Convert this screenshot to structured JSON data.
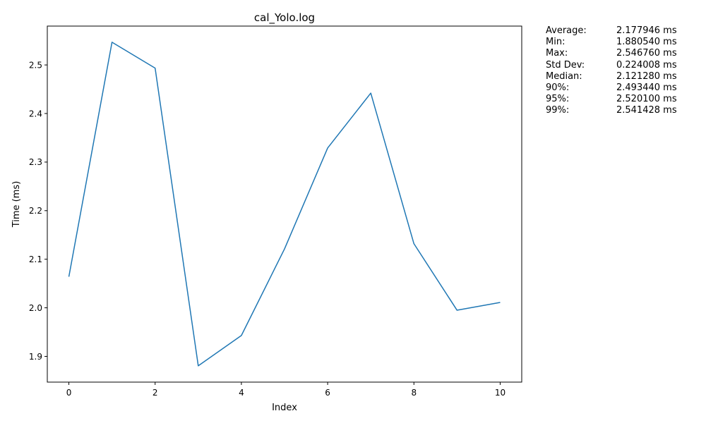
{
  "chart_data": {
    "type": "line",
    "title": "cal_Yolo.log",
    "xlabel": "Index",
    "ylabel": "Time (ms)",
    "xlim": [
      -0.5,
      10.5
    ],
    "ylim": [
      1.847,
      2.58
    ],
    "xticks": [
      0,
      2,
      4,
      6,
      8,
      10
    ],
    "yticks": [
      1.9,
      2.0,
      2.1,
      2.2,
      2.3,
      2.4,
      2.5
    ],
    "ytick_labels": [
      "1.9",
      "2.0",
      "2.1",
      "2.2",
      "2.3",
      "2.4",
      "2.5"
    ],
    "grid": false,
    "series": [
      {
        "color": "#1f77b4",
        "x": [
          0,
          1,
          2,
          3,
          4,
          5,
          6,
          7,
          8,
          9,
          10
        ],
        "y": [
          2.064,
          2.54676,
          2.49344,
          1.88054,
          1.943,
          2.12128,
          2.329,
          2.442,
          2.132,
          1.995,
          2.011
        ]
      }
    ]
  },
  "stats": [
    {
      "name": "Average:",
      "value": "2.177946 ms"
    },
    {
      "name": "Min:",
      "value": "1.880540 ms"
    },
    {
      "name": "Max:",
      "value": "2.546760 ms"
    },
    {
      "name": "Std Dev:",
      "value": "0.224008 ms"
    },
    {
      "name": "Median:",
      "value": "2.121280 ms"
    },
    {
      "name": "90%:",
      "value": "2.493440 ms"
    },
    {
      "name": "95%:",
      "value": "2.520100 ms"
    },
    {
      "name": "99%:",
      "value": "2.541428 ms"
    }
  ]
}
